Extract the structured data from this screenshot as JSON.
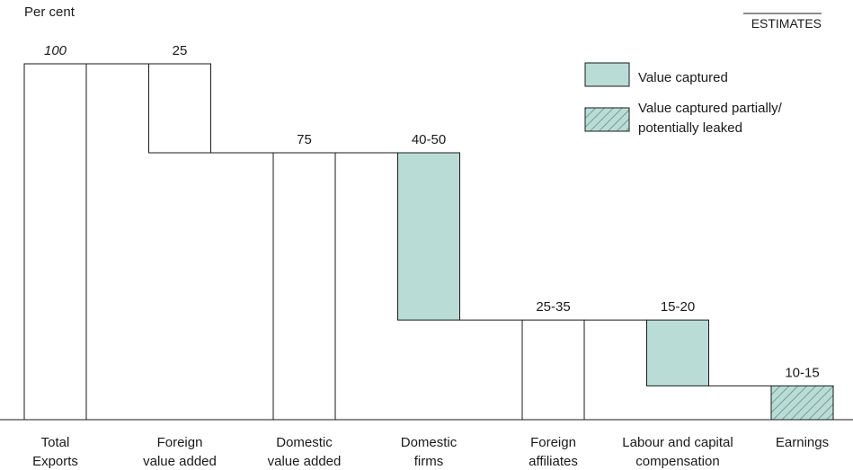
{
  "chart_data": {
    "type": "bar",
    "ylabel": "Per cent",
    "note": "ESTIMATES",
    "colors": {
      "captured": "#b9ddd6",
      "outline": "#1a1a1a",
      "hatch": "#5e8f86"
    },
    "legend": {
      "position": "top-right",
      "entries": [
        {
          "label": "Value captured",
          "style": "captured"
        },
        {
          "label": "Value captured partially/ potentially leaked",
          "style": "hatched"
        }
      ]
    },
    "categories": [
      {
        "name": "Total Exports",
        "label_lines": [
          "Total",
          "Exports"
        ],
        "value_label": "100",
        "italic": true,
        "bottom": 0,
        "top": 100,
        "style": "plain"
      },
      {
        "name": "Foreign value added",
        "label_lines": [
          "Foreign",
          "value added"
        ],
        "value_label": "25",
        "bottom": 75,
        "top": 100,
        "style": "plain"
      },
      {
        "name": "Domestic value added",
        "label_lines": [
          "Domestic",
          "value added"
        ],
        "value_label": "75",
        "bottom": 0,
        "top": 75,
        "style": "plain"
      },
      {
        "name": "Domestic firms",
        "label_lines": [
          "Domestic",
          "firms"
        ],
        "value_label": "40-50",
        "bottom": 28,
        "top": 75,
        "style": "captured"
      },
      {
        "name": "Foreign affiliates",
        "label_lines": [
          "Foreign",
          "affiliates"
        ],
        "value_label": "25-35",
        "bottom": 0,
        "top": 28,
        "style": "plain"
      },
      {
        "name": "Labour and capital compensation",
        "label_lines": [
          "Labour and capital",
          "compensation"
        ],
        "value_label": "15-20",
        "bottom": 9.5,
        "top": 28,
        "style": "captured"
      },
      {
        "name": "Earnings",
        "label_lines": [
          "Earnings"
        ],
        "value_label": "10-15",
        "bottom": 0,
        "top": 9.5,
        "style": "hatched"
      }
    ]
  }
}
